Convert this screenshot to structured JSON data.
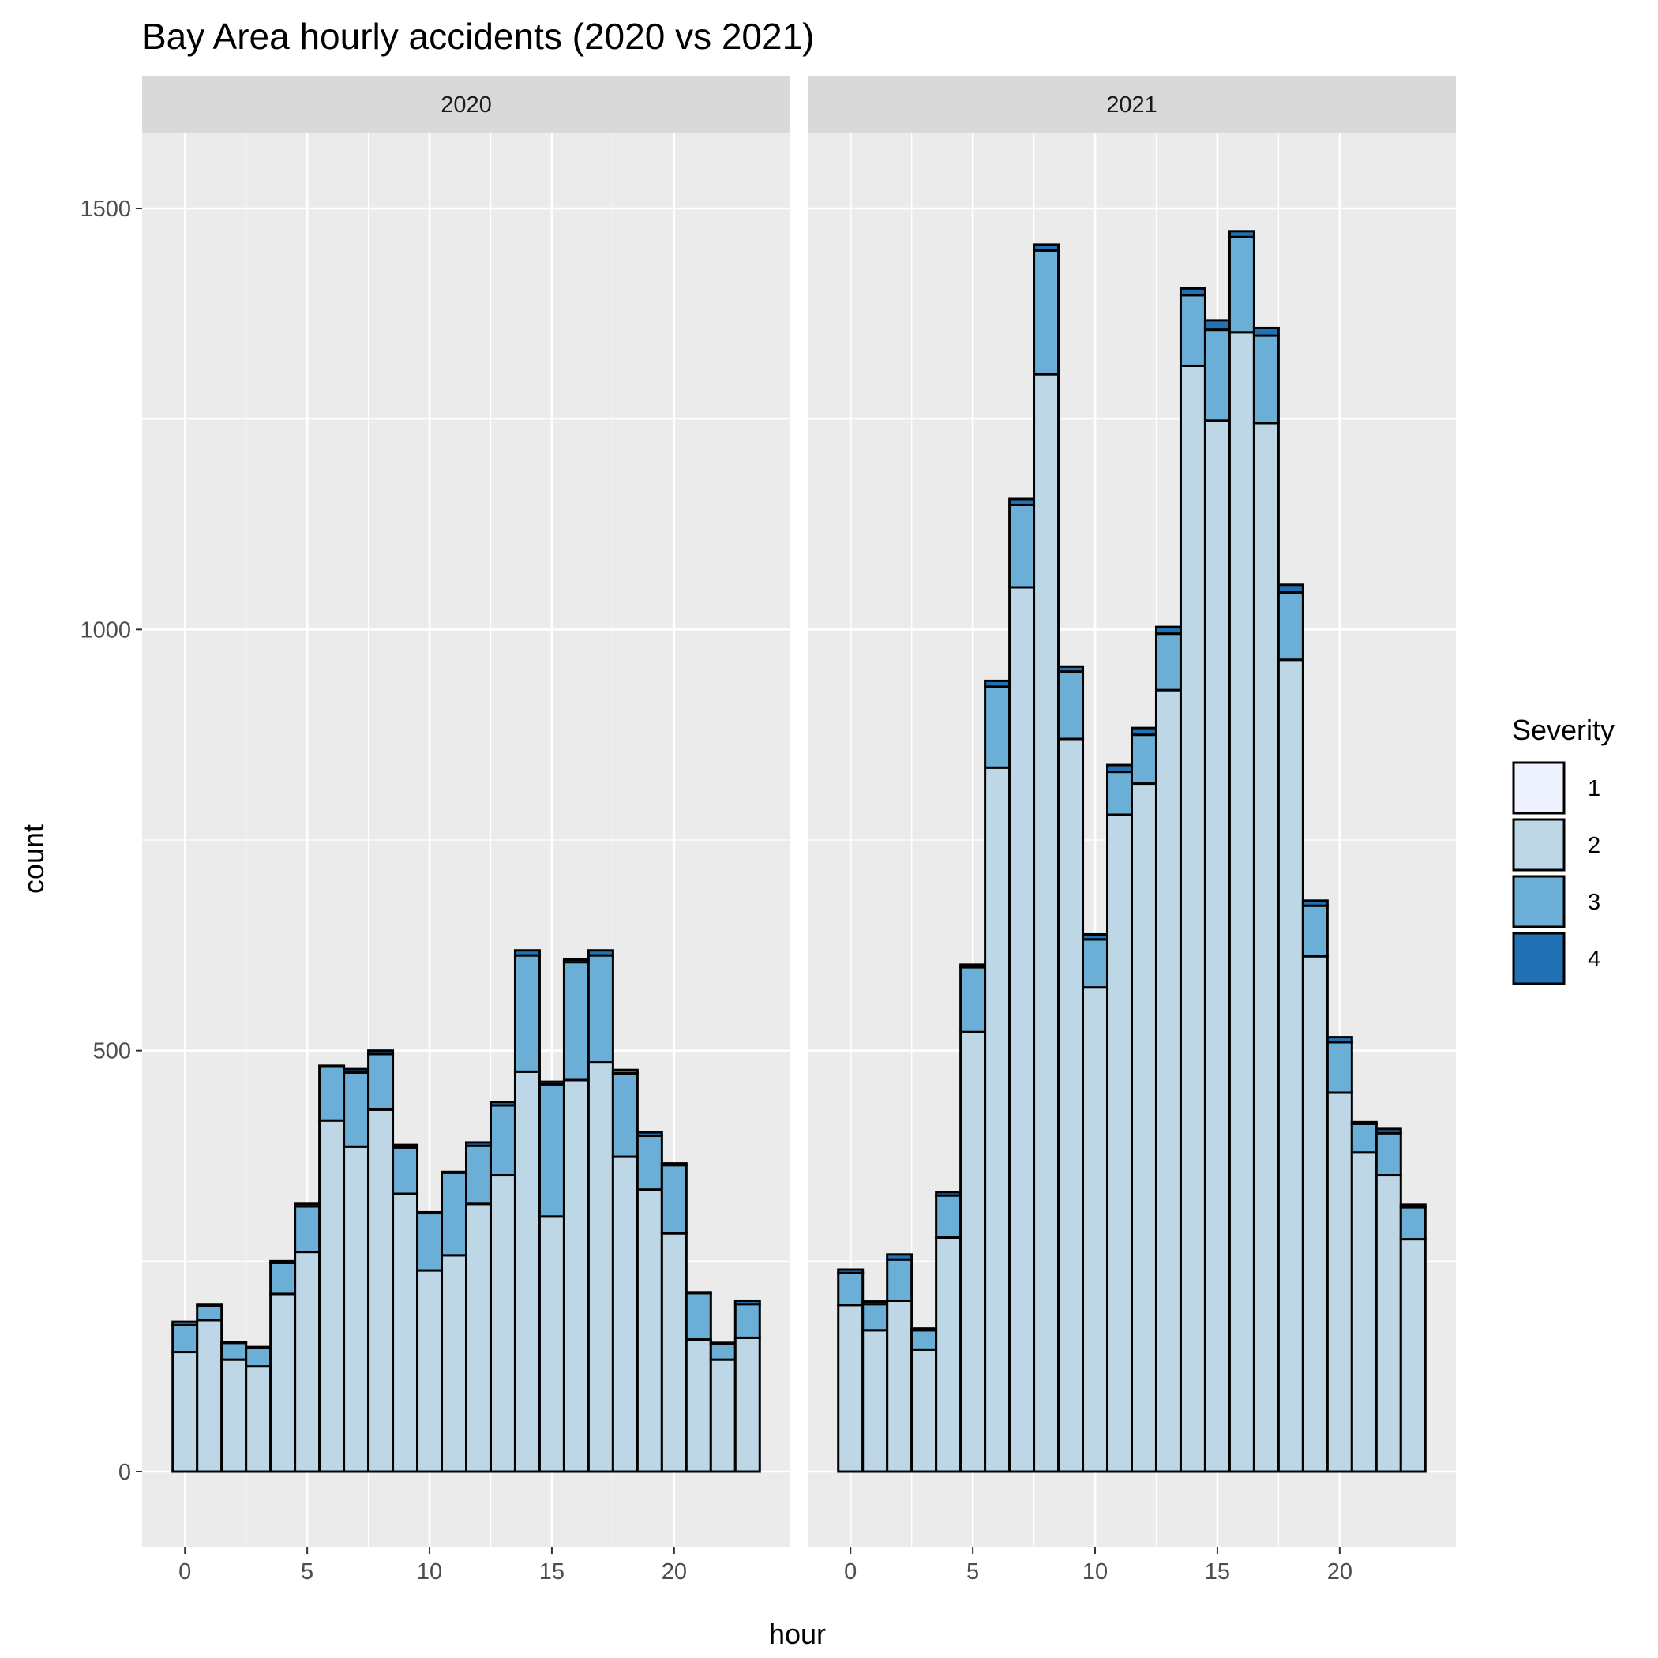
{
  "chart_data": {
    "type": "bar",
    "stacked": true,
    "title": "Bay Area hourly accidents (2020 vs 2021)",
    "xlabel": "hour",
    "ylabel": "count",
    "xlim": [
      -1.75,
      24.75
    ],
    "ylim": [
      -90,
      1590
    ],
    "x_ticks": [
      0,
      5,
      10,
      15,
      20
    ],
    "y_ticks": [
      0,
      500,
      1000,
      1500
    ],
    "grid": true,
    "legend": {
      "title": "Severity",
      "position": "right",
      "entries": [
        "1",
        "2",
        "3",
        "4"
      ]
    },
    "colors": {
      "1": "#eff3ff",
      "2": "#bdd7e7",
      "3": "#6baed6",
      "4": "#2171b5",
      "outline": "#000000",
      "panel_bg": "#ebebeb",
      "grid": "#ffffff",
      "strip_bg": "#d9d9d9"
    },
    "x": [
      0,
      1,
      2,
      3,
      4,
      5,
      6,
      7,
      8,
      9,
      10,
      11,
      12,
      13,
      14,
      15,
      16,
      17,
      18,
      19,
      20,
      21,
      22,
      23
    ],
    "facets": [
      {
        "label": "2020",
        "series": [
          {
            "name": "1",
            "values": [
              0,
              0,
              0,
              0,
              0,
              0,
              0,
              0,
              0,
              0,
              0,
              0,
              0,
              0,
              0,
              0,
              0,
              0,
              0,
              0,
              0,
              0,
              0,
              0
            ]
          },
          {
            "name": "2",
            "values": [
              142,
              180,
              133,
              125,
              211,
              261,
              417,
              386,
              430,
              330,
              239,
              257,
              318,
              352,
              475,
              303,
              465,
              486,
              374,
              335,
              283,
              157,
              133,
              159
            ]
          },
          {
            "name": "3",
            "values": [
              32,
              17,
              20,
              22,
              37,
              54,
              64,
              88,
              66,
              55,
              68,
              98,
              69,
              83,
              138,
              157,
              140,
              127,
              99,
              64,
              81,
              55,
              19,
              40
            ]
          },
          {
            "name": "4",
            "values": [
              4,
              2,
              1,
              1,
              2,
              3,
              1,
              4,
              4,
              3,
              1,
              1,
              4,
              4,
              6,
              3,
              3,
              6,
              4,
              4,
              2,
              1,
              1,
              4
            ]
          }
        ]
      },
      {
        "label": "2021",
        "series": [
          {
            "name": "1",
            "values": [
              0,
              0,
              0,
              0,
              0,
              0,
              0,
              0,
              0,
              0,
              0,
              0,
              0,
              0,
              0,
              0,
              0,
              0,
              0,
              0,
              0,
              0,
              0,
              0
            ]
          },
          {
            "name": "2",
            "values": [
              198,
              168,
              203,
              145,
              278,
              522,
              836,
              1050,
              1303,
              870,
              575,
              780,
              817,
              928,
              1313,
              1248,
              1353,
              1245,
              964,
              612,
              450,
              379,
              352,
              276
            ]
          },
          {
            "name": "3",
            "values": [
              38,
              31,
              49,
              23,
              50,
              77,
              96,
              98,
              147,
              80,
              57,
              51,
              58,
              67,
              84,
              108,
              113,
              104,
              80,
              60,
              60,
              34,
              50,
              38
            ]
          },
          {
            "name": "4",
            "values": [
              4,
              3,
              6,
              2,
              4,
              3,
              7,
              7,
              7,
              6,
              6,
              8,
              8,
              8,
              8,
              11,
              7,
              9,
              9,
              6,
              6,
              2,
              5,
              3
            ]
          }
        ]
      }
    ]
  }
}
